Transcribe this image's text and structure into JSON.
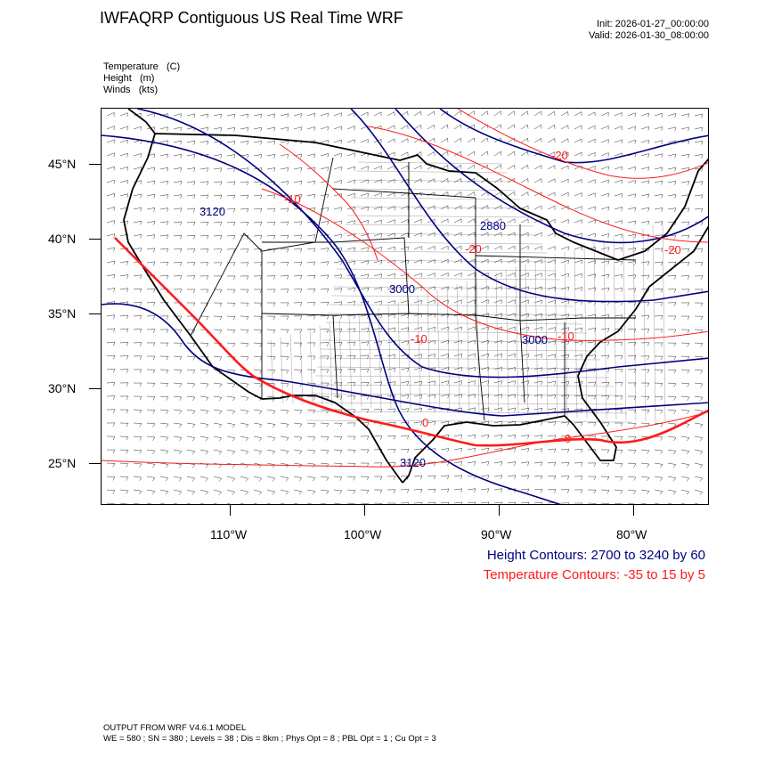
{
  "header": {
    "title": "IWFAQRP Contiguous US Real Time WRF",
    "init": "Init: 2026-01-27_00:00:00",
    "valid": "Valid: 2026-01-30_08:00:00"
  },
  "variables": [
    {
      "name": "Temperature",
      "unit": "(C)"
    },
    {
      "name": "Height",
      "unit": "(m)"
    },
    {
      "name": "Winds",
      "unit": "(kts)"
    }
  ],
  "axes": {
    "lat_labels": [
      "45°N",
      "40°N",
      "35°N",
      "30°N",
      "25°N"
    ],
    "lon_labels": [
      "110°W",
      "100°W",
      "90°W",
      "80°W"
    ]
  },
  "contour_labels": {
    "height": [
      "3120",
      "2880",
      "3000",
      "3000",
      "3120"
    ],
    "temperature": [
      "-20",
      "-10",
      "-20",
      "-20",
      "-10",
      "-10",
      "0",
      "0"
    ]
  },
  "legend": {
    "height": "Height Contours: 2700 to 3240 by 60",
    "temperature": "Temperature Contours: -35 to 15 by 5"
  },
  "colors": {
    "height": "#00007f",
    "temperature": "#ff1a1a",
    "coast": "#000000"
  },
  "footer": {
    "line1": "OUTPUT FROM WRF V4.6.1 MODEL",
    "line2": "WE = 580 ; SN = 380 ; Levels = 38 ; Dis = 8km ; Phys Opt = 8 ; PBL Opt = 1 ; Cu Opt = 3"
  }
}
